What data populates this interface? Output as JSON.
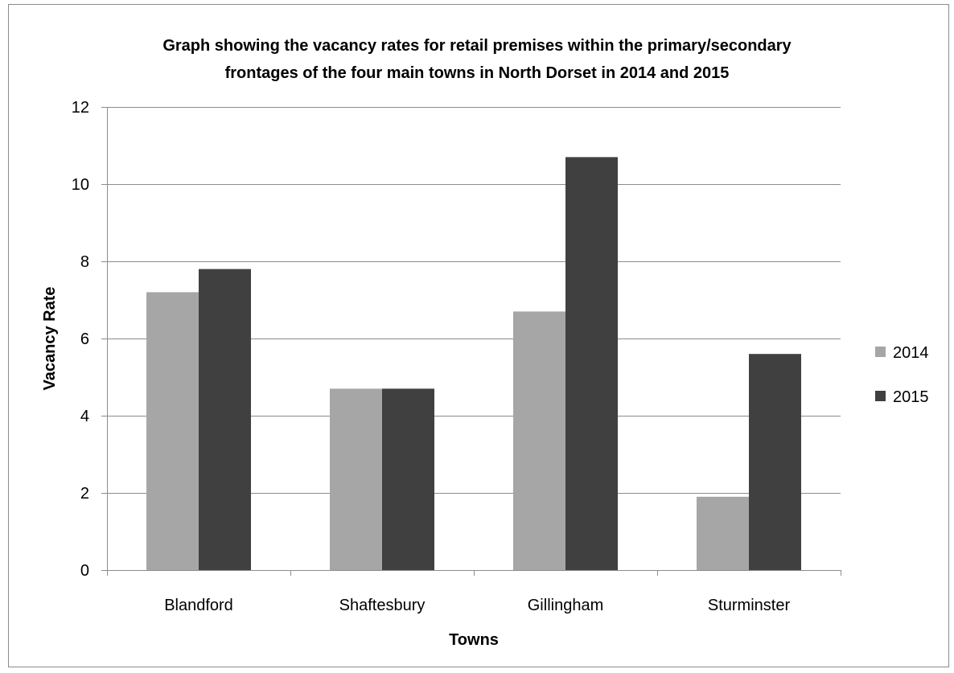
{
  "chart_data": {
    "type": "bar",
    "title_lines": [
      "Graph showing the vacancy  rates for retail premises within the primary/secondary",
      "frontages of the four main towns in North Dorset in 2014 and 2015"
    ],
    "xlabel": "Towns",
    "ylabel": "Vacancy  Rate",
    "categories": [
      "Blandford",
      "Shaftesbury",
      "Gillingham",
      "Sturminster"
    ],
    "series": [
      {
        "name": "2014",
        "color": "#a6a6a6",
        "values": [
          7.2,
          4.7,
          6.7,
          1.9
        ]
      },
      {
        "name": "2015",
        "color": "#404040",
        "values": [
          7.8,
          4.7,
          10.7,
          5.6
        ]
      }
    ],
    "ylim": [
      0,
      12
    ],
    "yticks": [
      0,
      2,
      4,
      6,
      8,
      10,
      12
    ],
    "grid": true,
    "legend_position": "right"
  }
}
